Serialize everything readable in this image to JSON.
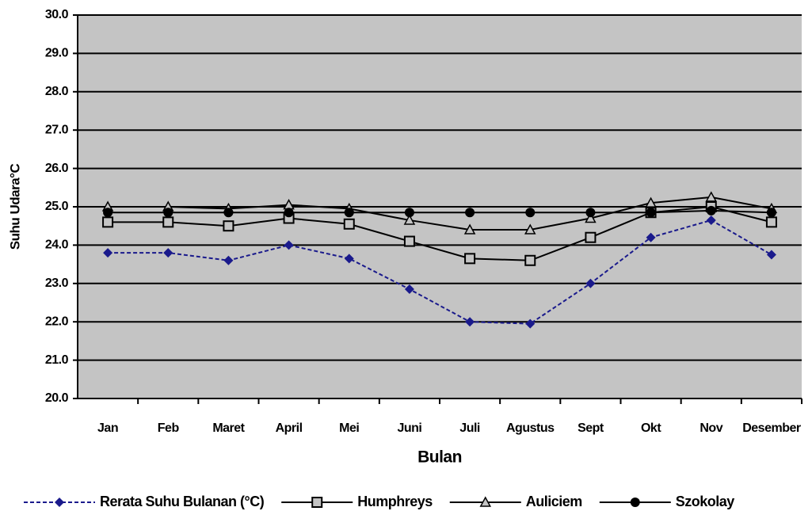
{
  "chart_data": {
    "type": "line",
    "y_label": "Suhu Udara°C",
    "x_label": "Bulan",
    "categories": [
      "Jan",
      "Feb",
      "Maret",
      "April",
      "Mei",
      "Juni",
      "Juli",
      "Agustus",
      "Sept",
      "Okt",
      "Nov",
      "Desember"
    ],
    "series": [
      {
        "name": "Rerata Suhu Bulanan (°C)",
        "color": "#1a1a8c",
        "marker": "diamond",
        "line_style": "dashed",
        "values": [
          23.8,
          23.8,
          23.6,
          24.0,
          23.65,
          22.85,
          22.0,
          21.95,
          23.0,
          24.2,
          24.65,
          23.75
        ]
      },
      {
        "name": "Humphreys",
        "color": "#000000",
        "marker": "square",
        "line_style": "solid",
        "values": [
          24.6,
          24.6,
          24.5,
          24.7,
          24.55,
          24.1,
          23.65,
          23.6,
          24.2,
          24.85,
          25.0,
          24.6
        ]
      },
      {
        "name": "Auliciem",
        "color": "#000000",
        "marker": "triangle",
        "line_style": "solid",
        "values": [
          25.0,
          25.0,
          24.95,
          25.05,
          24.95,
          24.65,
          24.4,
          24.4,
          24.7,
          25.1,
          25.25,
          24.95
        ]
      },
      {
        "name": "Szokolay",
        "color": "#000000",
        "marker": "circle",
        "line_style": "solid",
        "values": [
          24.85,
          24.85,
          24.85,
          24.85,
          24.85,
          24.85,
          24.85,
          24.85,
          24.85,
          24.85,
          24.9,
          24.85
        ]
      }
    ],
    "ylim": [
      20,
      30
    ],
    "yticks": [
      {
        "value": 20,
        "label": "20.0"
      },
      {
        "value": 21,
        "label": "21.0"
      },
      {
        "value": 22,
        "label": "22.0"
      },
      {
        "value": 23,
        "label": "23.0"
      },
      {
        "value": 24,
        "label": "24.0"
      },
      {
        "value": 25,
        "label": "25.0"
      },
      {
        "value": 26,
        "label": "26.0"
      },
      {
        "value": 27,
        "label": "27.0"
      },
      {
        "value": 28,
        "label": "28.0"
      },
      {
        "value": 29,
        "label": "29.0"
      },
      {
        "value": 30,
        "label": "30.0"
      }
    ],
    "grid": true,
    "plot_background": "#c4c4c4",
    "legend": "bottom"
  }
}
